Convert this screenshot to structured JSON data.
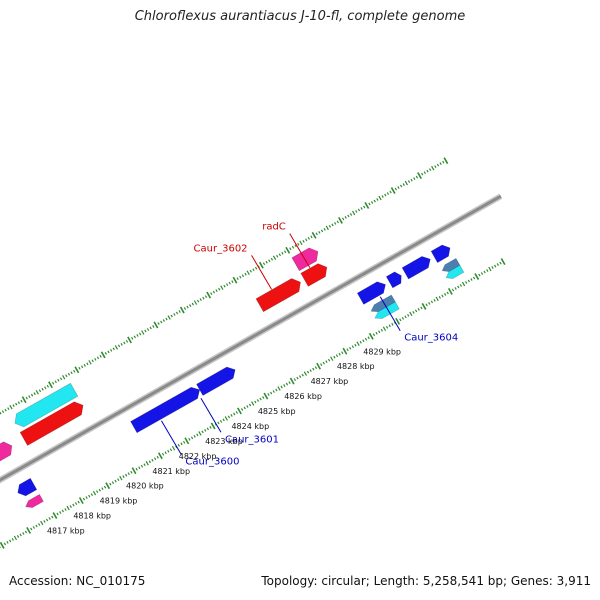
{
  "title": "Chloroflexus aurantiacus J-10-fl, complete genome",
  "footer": {
    "accession": "Accession: NC_010175",
    "summary": "Topology: circular; Length: 5,258,541 bp; Genes: 3,911"
  },
  "colors": {
    "backbone": "#8a8a8a",
    "tick": "#2e8b2e",
    "blue_gene": "#1414e6",
    "red_gene": "#ee1111",
    "cyan_gene": "#22e6f0",
    "pink_gene": "#ee2a9e",
    "steel_gene": "#4a7fb0",
    "blue_label": "#0000c0",
    "red_label": "#cc0000"
  },
  "scale": {
    "unit": "kbp",
    "labels": [
      "4817 kbp",
      "4818 kbp",
      "4819 kbp",
      "4820 kbp",
      "4821 kbp",
      "4822 kbp",
      "4823 kbp",
      "4824 kbp",
      "4825 kbp",
      "4826 kbp",
      "4827 kbp",
      "4828 kbp",
      "4829 kbp"
    ]
  },
  "genes": [
    {
      "start": 4816.3,
      "end": 4816.9,
      "strand": "forward",
      "track": "outer1",
      "color": "pink_gene"
    },
    {
      "start": 4816.3,
      "end": 4816.9,
      "strand": "reverse",
      "track": "inner2",
      "color": "pink_gene"
    },
    {
      "start": 4816.3,
      "end": 4816.9,
      "strand": "reverse",
      "track": "inner1",
      "color": "blue_gene"
    },
    {
      "start": 4817.35,
      "end": 4819.6,
      "strand": "reverse",
      "track": "outer2",
      "color": "cyan_gene"
    },
    {
      "start": 4817.35,
      "end": 4819.6,
      "strand": "forward",
      "track": "outer1",
      "color": "red_gene"
    },
    {
      "start": 4820.7,
      "end": 4823.2,
      "strand": "forward",
      "track": "inner1",
      "color": "blue_gene"
    },
    {
      "start": 4823.2,
      "end": 4824.55,
      "strand": "forward",
      "track": "inner1",
      "color": "blue_gene"
    },
    {
      "start": 4826.3,
      "end": 4827.85,
      "strand": "forward",
      "track": "outer1",
      "color": "red_gene"
    },
    {
      "start": 4828.0,
      "end": 4828.85,
      "strand": "forward",
      "track": "outer1",
      "color": "red_gene"
    },
    {
      "start": 4828.0,
      "end": 4828.85,
      "strand": "forward",
      "track": "outer2",
      "color": "pink_gene"
    },
    {
      "start": 4829.3,
      "end": 4830.25,
      "strand": "forward",
      "track": "inner1",
      "color": "blue_gene"
    },
    {
      "start": 4829.4,
      "end": 4830.25,
      "strand": "reverse",
      "track": "inner2",
      "color": "steel_gene"
    },
    {
      "start": 4829.4,
      "end": 4830.25,
      "strand": "reverse",
      "track": "inner3",
      "color": "cyan_gene"
    },
    {
      "start": 4830.4,
      "end": 4830.85,
      "strand": "forward",
      "track": "inner1",
      "color": "blue_gene"
    },
    {
      "start": 4831.0,
      "end": 4831.95,
      "strand": "forward",
      "track": "inner1",
      "color": "blue_gene"
    },
    {
      "start": 4832.1,
      "end": 4832.7,
      "strand": "forward",
      "track": "inner1",
      "color": "blue_gene"
    },
    {
      "start": 4832.1,
      "end": 4832.7,
      "strand": "reverse",
      "track": "inner2",
      "color": "steel_gene"
    },
    {
      "start": 4832.1,
      "end": 4832.7,
      "strand": "reverse",
      "track": "inner3",
      "color": "cyan_gene"
    }
  ],
  "gene_labels": [
    {
      "text": "Caur_3600",
      "color": "blue_label",
      "at": 4821.6,
      "side": "inner"
    },
    {
      "text": "Caur_3601",
      "color": "blue_label",
      "at": 4823.1,
      "side": "inner"
    },
    {
      "text": "Caur_3602",
      "color": "red_label",
      "at": 4826.9,
      "side": "outer"
    },
    {
      "text": "radC",
      "color": "red_label",
      "at": 4828.35,
      "side": "outer"
    },
    {
      "text": "Caur_3604",
      "color": "blue_label",
      "at": 4829.9,
      "side": "inner"
    }
  ]
}
